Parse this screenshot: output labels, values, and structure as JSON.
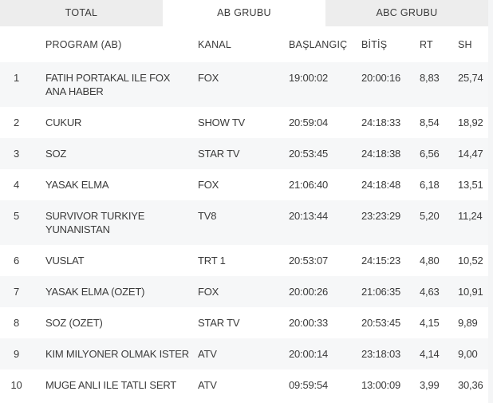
{
  "colors": {
    "tab_inactive_bg": "#ededed",
    "tab_active_bg": "#ffffff",
    "stripe_bg": "#f6f7f8",
    "text": "#3b3b3b",
    "page_bg": "#f4f5f6"
  },
  "tabs": [
    {
      "label": "TOTAL",
      "active": false
    },
    {
      "label": "AB GRUBU",
      "active": true
    },
    {
      "label": "ABC GRUBU",
      "active": false
    }
  ],
  "table": {
    "columns": [
      "PROGRAM (AB)",
      "KANAL",
      "BAŞLANGIÇ",
      "BİTİŞ",
      "RT",
      "SH"
    ],
    "rows": [
      {
        "rank": "1",
        "program": "FATIH PORTAKAL ILE FOX\nANA HABER",
        "kanal": "FOX",
        "baslangic": "19:00:02",
        "bitis": "20:00:16",
        "rt": "8,83",
        "sh": "25,74"
      },
      {
        "rank": "2",
        "program": "CUKUR",
        "kanal": "SHOW TV",
        "baslangic": "20:59:04",
        "bitis": "24:18:33",
        "rt": "8,54",
        "sh": "18,92"
      },
      {
        "rank": "3",
        "program": "SOZ",
        "kanal": "STAR TV",
        "baslangic": "20:53:45",
        "bitis": "24:18:38",
        "rt": "6,56",
        "sh": "14,47"
      },
      {
        "rank": "4",
        "program": "YASAK ELMA",
        "kanal": "FOX",
        "baslangic": "21:06:40",
        "bitis": "24:18:48",
        "rt": "6,18",
        "sh": "13,51"
      },
      {
        "rank": "5",
        "program": "SURVIVOR TURKIYE\nYUNANISTAN",
        "kanal": "TV8",
        "baslangic": "20:13:44",
        "bitis": "23:23:29",
        "rt": "5,20",
        "sh": "11,24"
      },
      {
        "rank": "6",
        "program": "VUSLAT",
        "kanal": "TRT 1",
        "baslangic": "20:53:07",
        "bitis": "24:15:23",
        "rt": "4,80",
        "sh": "10,52"
      },
      {
        "rank": "7",
        "program": "YASAK ELMA (OZET)",
        "kanal": "FOX",
        "baslangic": "20:00:26",
        "bitis": "21:06:35",
        "rt": "4,63",
        "sh": "10,91"
      },
      {
        "rank": "8",
        "program": "SOZ (OZET)",
        "kanal": "STAR TV",
        "baslangic": "20:00:33",
        "bitis": "20:53:45",
        "rt": "4,15",
        "sh": "9,89"
      },
      {
        "rank": "9",
        "program": "KIM MILYONER OLMAK ISTER",
        "kanal": "ATV",
        "baslangic": "20:00:14",
        "bitis": "23:18:03",
        "rt": "4,14",
        "sh": "9,00"
      },
      {
        "rank": "10",
        "program": "MUGE ANLI ILE TATLI SERT",
        "kanal": "ATV",
        "baslangic": "09:59:54",
        "bitis": "13:00:09",
        "rt": "3,99",
        "sh": "30,36"
      }
    ]
  }
}
